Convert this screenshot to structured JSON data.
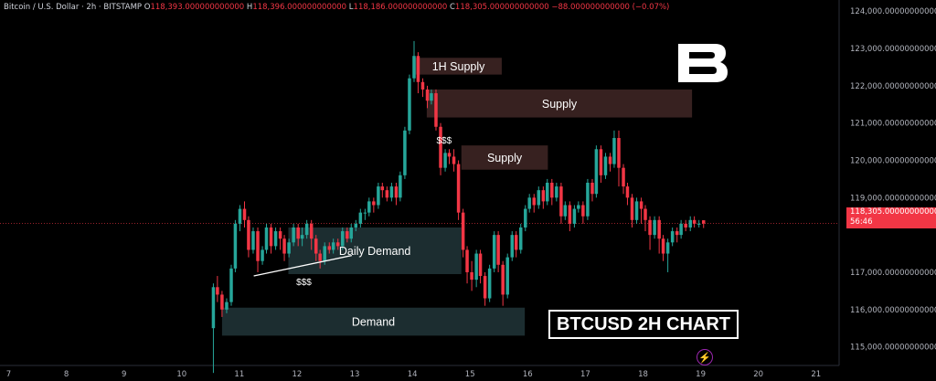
{
  "header": {
    "symbol": "Bitcoin / U.S. Dollar · 2h · BITSTAMP",
    "o_label": "O",
    "o_value": "118,393.000000000000",
    "h_label": "H",
    "h_value": "118,396.000000000000",
    "l_label": "L",
    "l_value": "118,186.000000000000",
    "c_label": "C",
    "c_value": "118,305.000000000000",
    "change": "−88.000000000000 (−0.07%)"
  },
  "title_box": "BTCUSD 2H CHART",
  "price_tag": {
    "price": "118,305.000000000000",
    "countdown": "56:46"
  },
  "icons": {
    "logo": "brand-b-logo",
    "bolt": "lightning-icon"
  },
  "colors": {
    "up": "#26a69a",
    "down": "#f23645",
    "zone_demand": "#1d2f33",
    "zone_supply": "#3a2322"
  },
  "chart_data": {
    "type": "candlestick",
    "x_ticks": [
      "7",
      "8",
      "9",
      "10",
      "11",
      "12",
      "13",
      "14",
      "15",
      "16",
      "17",
      "18",
      "19",
      "20",
      "21"
    ],
    "y_ticks": [
      "124,000.000000000000",
      "123,000.000000000000",
      "122,000.000000000000",
      "121,000.000000000000",
      "120,000.000000000000",
      "119,000.000000000000",
      "117,000.000000000000",
      "116,000.000000000000",
      "115,000.000000000000"
    ],
    "ylim": [
      114500,
      124300
    ],
    "xlim": [
      6.85,
      21.4
    ],
    "last_price": 118305,
    "candles": [
      [
        10.55,
        115500,
        116600,
        114300,
        116700
      ],
      [
        10.62,
        116600,
        116400,
        116200,
        116900
      ],
      [
        10.7,
        116400,
        116000,
        115800,
        116500
      ],
      [
        10.78,
        116000,
        116200,
        115900,
        116300
      ],
      [
        10.86,
        116200,
        117100,
        116100,
        117200
      ],
      [
        10.93,
        117100,
        118300,
        117000,
        118400
      ],
      [
        11.01,
        118300,
        118700,
        118100,
        118800
      ],
      [
        11.09,
        118700,
        118400,
        118200,
        118900
      ],
      [
        11.16,
        118400,
        117600,
        117400,
        118500
      ],
      [
        11.24,
        117600,
        118100,
        117500,
        118200
      ],
      [
        11.32,
        118100,
        117300,
        117000,
        118200
      ],
      [
        11.4,
        117300,
        117600,
        117200,
        117700
      ],
      [
        11.47,
        117600,
        118200,
        117500,
        118300
      ],
      [
        11.55,
        118200,
        117700,
        117500,
        118300
      ],
      [
        11.63,
        117700,
        118100,
        117600,
        118200
      ],
      [
        11.71,
        118100,
        117900,
        117600,
        118200
      ],
      [
        11.78,
        117900,
        117500,
        117300,
        118000
      ],
      [
        11.86,
        117500,
        117800,
        117400,
        117900
      ],
      [
        11.94,
        117800,
        118200,
        117700,
        118300
      ],
      [
        12.02,
        118200,
        117900,
        117700,
        118300
      ],
      [
        12.09,
        117900,
        118000,
        117700,
        118200
      ],
      [
        12.17,
        118000,
        118300,
        117900,
        118400
      ],
      [
        12.25,
        118300,
        117900,
        117600,
        118400
      ],
      [
        12.33,
        117900,
        117500,
        117300,
        118000
      ],
      [
        12.4,
        117500,
        117300,
        117100,
        117600
      ],
      [
        12.48,
        117300,
        117700,
        117200,
        117800
      ],
      [
        12.56,
        117700,
        117600,
        117500,
        117800
      ],
      [
        12.63,
        117600,
        117800,
        117500,
        117900
      ],
      [
        12.71,
        117800,
        117700,
        117600,
        117900
      ],
      [
        12.79,
        117700,
        118100,
        117600,
        118200
      ],
      [
        12.87,
        118100,
        117900,
        117800,
        118200
      ],
      [
        12.94,
        117900,
        118200,
        117800,
        118300
      ],
      [
        13.02,
        118200,
        118300,
        118100,
        118400
      ],
      [
        13.1,
        118300,
        118600,
        118200,
        118700
      ],
      [
        13.18,
        118600,
        118600,
        118400,
        118700
      ],
      [
        13.25,
        118600,
        118900,
        118500,
        119000
      ],
      [
        13.33,
        118900,
        118800,
        118600,
        119000
      ],
      [
        13.41,
        118800,
        119300,
        118700,
        119400
      ],
      [
        13.48,
        119300,
        119200,
        119000,
        119400
      ],
      [
        13.56,
        119200,
        119000,
        118900,
        119300
      ],
      [
        13.64,
        119000,
        119300,
        118900,
        119400
      ],
      [
        13.72,
        119300,
        119000,
        118800,
        119400
      ],
      [
        13.79,
        119000,
        119600,
        118900,
        119700
      ],
      [
        13.87,
        119600,
        120800,
        119500,
        120900
      ],
      [
        13.95,
        120800,
        122200,
        120700,
        122300
      ],
      [
        14.03,
        122200,
        122800,
        122100,
        123200
      ],
      [
        14.1,
        122800,
        122100,
        121800,
        122900
      ],
      [
        14.18,
        122100,
        121900,
        121700,
        122200
      ],
      [
        14.26,
        121900,
        121600,
        121400,
        122000
      ],
      [
        14.33,
        121600,
        121800,
        121500,
        121900
      ],
      [
        14.41,
        121800,
        120900,
        120800,
        121900
      ],
      [
        14.49,
        120900,
        119800,
        119600,
        121000
      ],
      [
        14.57,
        119800,
        120200,
        119700,
        120300
      ],
      [
        14.64,
        120200,
        120100,
        119900,
        120300
      ],
      [
        14.72,
        120100,
        119900,
        119700,
        120300
      ],
      [
        14.8,
        119900,
        118600,
        118400,
        120000
      ],
      [
        14.88,
        118600,
        117600,
        117400,
        118700
      ],
      [
        14.95,
        117600,
        117000,
        116700,
        117700
      ],
      [
        15.03,
        117000,
        116800,
        116500,
        117300
      ],
      [
        15.11,
        116800,
        117500,
        116600,
        117600
      ],
      [
        15.18,
        117500,
        116900,
        116700,
        117600
      ],
      [
        15.26,
        116900,
        116300,
        116100,
        117000
      ],
      [
        15.34,
        116300,
        117100,
        116200,
        117200
      ],
      [
        15.42,
        117100,
        118000,
        117000,
        118100
      ],
      [
        15.49,
        118000,
        117200,
        117000,
        118100
      ],
      [
        15.57,
        117200,
        116400,
        116100,
        117300
      ],
      [
        15.65,
        116400,
        117400,
        116300,
        117500
      ],
      [
        15.73,
        117400,
        118000,
        117300,
        118100
      ],
      [
        15.8,
        118000,
        117600,
        117400,
        118100
      ],
      [
        15.88,
        117600,
        118200,
        117500,
        118300
      ],
      [
        15.96,
        118200,
        118700,
        118100,
        118800
      ],
      [
        16.03,
        118700,
        119000,
        118600,
        119100
      ],
      [
        16.11,
        119000,
        118800,
        118600,
        119100
      ],
      [
        16.19,
        118800,
        119200,
        118700,
        119300
      ],
      [
        16.27,
        119200,
        118900,
        118700,
        119300
      ],
      [
        16.34,
        118900,
        119400,
        118800,
        119500
      ],
      [
        16.42,
        119400,
        119000,
        118800,
        119500
      ],
      [
        16.5,
        119000,
        119300,
        118900,
        119400
      ],
      [
        16.58,
        119300,
        118500,
        118300,
        119400
      ],
      [
        16.65,
        118500,
        118800,
        118400,
        118900
      ],
      [
        16.73,
        118800,
        118300,
        118100,
        118900
      ],
      [
        16.81,
        118300,
        118700,
        118200,
        118800
      ],
      [
        16.88,
        118700,
        118800,
        118600,
        118900
      ],
      [
        16.96,
        118800,
        118500,
        118300,
        118900
      ],
      [
        17.04,
        118500,
        119400,
        118400,
        119500
      ],
      [
        17.12,
        119400,
        119100,
        118900,
        119500
      ],
      [
        17.19,
        119100,
        120300,
        119000,
        120400
      ],
      [
        17.27,
        120300,
        119600,
        119400,
        120400
      ],
      [
        17.35,
        119600,
        120100,
        119500,
        120200
      ],
      [
        17.43,
        120100,
        119900,
        119700,
        120200
      ],
      [
        17.5,
        119900,
        120600,
        119800,
        120800
      ],
      [
        17.58,
        120600,
        119800,
        119300,
        120800
      ],
      [
        17.66,
        119800,
        119300,
        119100,
        119900
      ],
      [
        17.73,
        119300,
        119000,
        118800,
        119400
      ],
      [
        17.81,
        119000,
        118400,
        118200,
        119100
      ],
      [
        17.89,
        118400,
        118900,
        118300,
        119000
      ],
      [
        17.97,
        118900,
        118700,
        118300,
        119000
      ],
      [
        18.04,
        118700,
        118400,
        118100,
        118800
      ],
      [
        18.12,
        118400,
        118000,
        117600,
        118500
      ],
      [
        18.2,
        118000,
        118400,
        117900,
        118500
      ],
      [
        18.28,
        118400,
        117900,
        117500,
        118500
      ],
      [
        18.35,
        117900,
        117500,
        117300,
        118000
      ],
      [
        18.43,
        117500,
        117800,
        117000,
        117900
      ],
      [
        18.51,
        117800,
        118100,
        117700,
        118200
      ],
      [
        18.59,
        118100,
        118000,
        117800,
        118200
      ],
      [
        18.66,
        118000,
        118300,
        117900,
        118400
      ],
      [
        18.74,
        118300,
        118200,
        118100,
        118400
      ],
      [
        18.82,
        118200,
        118400,
        118100,
        118500
      ],
      [
        18.89,
        118400,
        118300,
        118200,
        118500
      ],
      [
        18.97,
        118300,
        118300,
        118200,
        118400
      ],
      [
        19.05,
        118393,
        118305,
        118186,
        118396
      ]
    ],
    "zones": [
      {
        "label": "1H Supply",
        "x0": 14.05,
        "x1": 15.55,
        "y0": 122300,
        "y1": 122750,
        "kind": "supply"
      },
      {
        "label": "Supply",
        "x0": 14.25,
        "x1": 18.85,
        "y0": 121150,
        "y1": 121900,
        "kind": "supply"
      },
      {
        "label": "Supply",
        "x0": 14.85,
        "x1": 16.35,
        "y0": 119750,
        "y1": 120400,
        "kind": "supply"
      },
      {
        "label": "Daily Demand",
        "x0": 11.85,
        "x1": 14.85,
        "y0": 116950,
        "y1": 118200,
        "kind": "demand"
      },
      {
        "label": "Demand",
        "x0": 10.7,
        "x1": 15.95,
        "y0": 115300,
        "y1": 116050,
        "kind": "demand"
      }
    ],
    "annotations": [
      {
        "text": "$$$",
        "x": 14.55,
        "y": 120450
      },
      {
        "text": "$$$",
        "x": 12.12,
        "y": 116650
      }
    ],
    "trendline": {
      "x0": 11.25,
      "y0": 116900,
      "x1": 12.95,
      "y1": 117450
    }
  }
}
